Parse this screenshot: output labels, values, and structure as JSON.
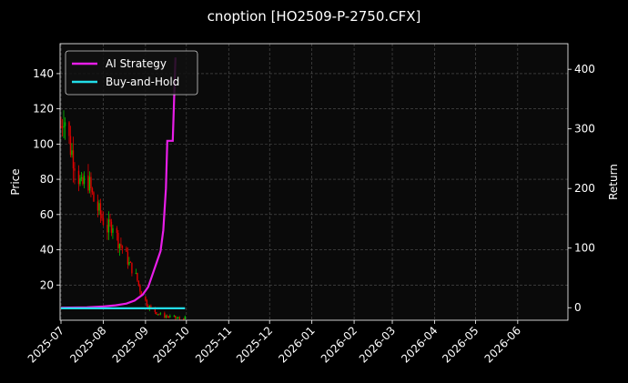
{
  "figure": {
    "title": "cnoption [HO2509-P-2750.CFX]",
    "background": "#000000",
    "axes_background": "#0a0a0a"
  },
  "legend": {
    "items": [
      {
        "label": "AI Strategy",
        "color": "#e81ee8"
      },
      {
        "label": "Buy-and-Hold",
        "color": "#22dde8"
      }
    ]
  },
  "chart_data": {
    "type": "line",
    "title": "cnoption [HO2509-P-2750.CFX]",
    "xlabel": "",
    "ylabel": "Price",
    "ylabel_right": "Return",
    "grid": true,
    "legend_position": "upper left",
    "x_ticks": [
      "2025-07",
      "2025-08",
      "2025-09",
      "2025-10",
      "2025-11",
      "2025-12",
      "2026-01",
      "2026-02",
      "2026-03",
      "2026-04",
      "2026-05",
      "2026-06"
    ],
    "y_ticks_left": [
      20,
      40,
      60,
      80,
      100,
      120,
      140
    ],
    "y_ticks_right": [
      0,
      100,
      200,
      300,
      400
    ],
    "ylim_left": [
      0,
      157
    ],
    "ylim_right": [
      -21,
      443
    ],
    "candlesticks": {
      "description": "Daily OHLC candles (green up, red down) from ~2025-07-01 to ~2025-09-30, price falling from ~115 to ~1",
      "up_color": "#00c000",
      "down_color": "#e00000",
      "approx_close": [
        {
          "date": "2025-07-01",
          "value": 110
        },
        {
          "date": "2025-07-03",
          "value": 118
        },
        {
          "date": "2025-07-08",
          "value": 98
        },
        {
          "date": "2025-07-12",
          "value": 88
        },
        {
          "date": "2025-07-16",
          "value": 75
        },
        {
          "date": "2025-07-20",
          "value": 82
        },
        {
          "date": "2025-07-25",
          "value": 68
        },
        {
          "date": "2025-07-30",
          "value": 60
        },
        {
          "date": "2025-08-04",
          "value": 52
        },
        {
          "date": "2025-08-08",
          "value": 55
        },
        {
          "date": "2025-08-12",
          "value": 45
        },
        {
          "date": "2025-08-16",
          "value": 40
        },
        {
          "date": "2025-08-20",
          "value": 32
        },
        {
          "date": "2025-08-25",
          "value": 25
        },
        {
          "date": "2025-08-29",
          "value": 15
        },
        {
          "date": "2025-09-03",
          "value": 8
        },
        {
          "date": "2025-09-08",
          "value": 5
        },
        {
          "date": "2025-09-12",
          "value": 3
        },
        {
          "date": "2025-09-18",
          "value": 2
        },
        {
          "date": "2025-09-25",
          "value": 1
        }
      ]
    },
    "series": [
      {
        "name": "AI Strategy",
        "axis": "right",
        "color": "#e81ee8",
        "points": [
          {
            "date": "2025-07-01",
            "value": 0
          },
          {
            "date": "2025-07-20",
            "value": 0.5
          },
          {
            "date": "2025-08-01",
            "value": 2
          },
          {
            "date": "2025-08-10",
            "value": 4
          },
          {
            "date": "2025-08-18",
            "value": 7
          },
          {
            "date": "2025-08-24",
            "value": 12
          },
          {
            "date": "2025-08-30",
            "value": 22
          },
          {
            "date": "2025-09-03",
            "value": 35
          },
          {
            "date": "2025-09-06",
            "value": 55
          },
          {
            "date": "2025-09-09",
            "value": 75
          },
          {
            "date": "2025-09-12",
            "value": 95
          },
          {
            "date": "2025-09-14",
            "value": 130
          },
          {
            "date": "2025-09-16",
            "value": 200
          },
          {
            "date": "2025-09-17",
            "value": 280
          },
          {
            "date": "2025-09-21",
            "value": 280
          },
          {
            "date": "2025-09-23",
            "value": 420
          }
        ]
      },
      {
        "name": "Buy-and-Hold",
        "axis": "right",
        "color": "#22dde8",
        "points": [
          {
            "date": "2025-07-01",
            "value": -1
          },
          {
            "date": "2025-09-30",
            "value": -1
          }
        ]
      }
    ]
  }
}
